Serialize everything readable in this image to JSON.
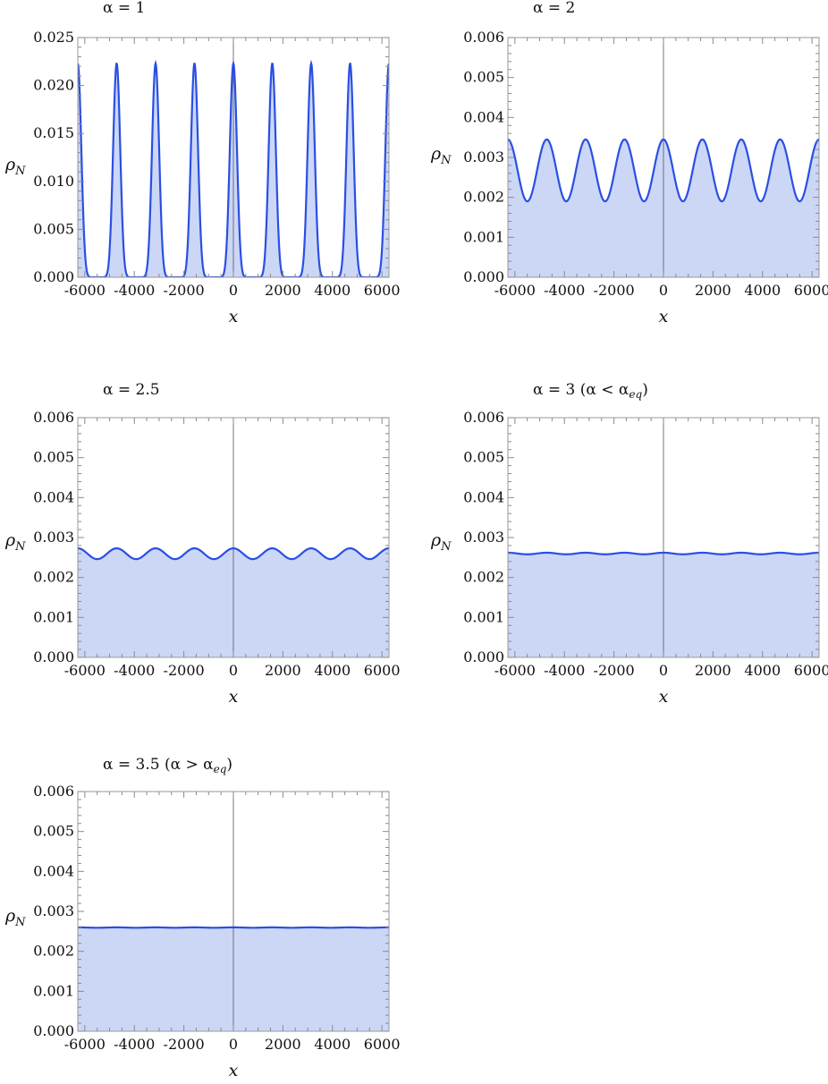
{
  "chart_data": [
    {
      "type": "area",
      "title": {
        "prefix": "α = 1",
        "suffix": ""
      },
      "xlabel": "x",
      "ylabel": {
        "main": "ρ",
        "sub": "N"
      },
      "xlim": [
        -6283,
        6283
      ],
      "ylim": [
        0,
        0.025
      ],
      "xticks": [
        -6000,
        -4000,
        -2000,
        0,
        2000,
        4000,
        6000
      ],
      "xtick_labels": [
        "-6000",
        "-4000",
        "-2000",
        "0",
        "2000",
        "4000",
        "6000"
      ],
      "yticks": [
        0,
        0.005,
        0.01,
        0.015,
        0.02,
        0.025
      ],
      "ytick_labels": [
        "0.000",
        "0.005",
        "0.010",
        "0.015",
        "0.020",
        "0.025"
      ],
      "series": [
        {
          "period": 1571,
          "peak": 0.0223,
          "trough": 0.0,
          "shape": "sharp"
        }
      ]
    },
    {
      "type": "area",
      "title": {
        "prefix": "α = 2",
        "suffix": ""
      },
      "xlabel": "x",
      "ylabel": {
        "main": "ρ",
        "sub": "N"
      },
      "xlim": [
        -6283,
        6283
      ],
      "ylim": [
        0,
        0.006
      ],
      "xticks": [
        -6000,
        -4000,
        -2000,
        0,
        2000,
        4000,
        6000
      ],
      "xtick_labels": [
        "-6000",
        "-4000",
        "-2000",
        "0",
        "2000",
        "4000",
        "6000"
      ],
      "yticks": [
        0,
        0.001,
        0.002,
        0.003,
        0.004,
        0.005,
        0.006
      ],
      "ytick_labels": [
        "0.000",
        "0.001",
        "0.002",
        "0.003",
        "0.004",
        "0.005",
        "0.006"
      ],
      "series": [
        {
          "period": 1571,
          "peak": 0.00345,
          "trough": 0.0019,
          "shape": "smooth"
        }
      ]
    },
    {
      "type": "area",
      "title": {
        "prefix": "α = 2.5",
        "suffix": ""
      },
      "xlabel": "x",
      "ylabel": {
        "main": "ρ",
        "sub": "N"
      },
      "xlim": [
        -6283,
        6283
      ],
      "ylim": [
        0,
        0.006
      ],
      "xticks": [
        -6000,
        -4000,
        -2000,
        0,
        2000,
        4000,
        6000
      ],
      "xtick_labels": [
        "-6000",
        "-4000",
        "-2000",
        "0",
        "2000",
        "4000",
        "6000"
      ],
      "yticks": [
        0,
        0.001,
        0.002,
        0.003,
        0.004,
        0.005,
        0.006
      ],
      "ytick_labels": [
        "0.000",
        "0.001",
        "0.002",
        "0.003",
        "0.004",
        "0.005",
        "0.006"
      ],
      "series": [
        {
          "period": 1571,
          "peak": 0.00273,
          "trough": 0.00246,
          "shape": "smooth"
        }
      ]
    },
    {
      "type": "area",
      "title": {
        "prefix": "α = 3 (α < α",
        "sub": "eq",
        "suffix": ")"
      },
      "xlabel": "x",
      "ylabel": {
        "main": "ρ",
        "sub": "N"
      },
      "xlim": [
        -6283,
        6283
      ],
      "ylim": [
        0,
        0.006
      ],
      "xticks": [
        -6000,
        -4000,
        -2000,
        0,
        2000,
        4000,
        6000
      ],
      "xtick_labels": [
        "-6000",
        "-4000",
        "-2000",
        "0",
        "2000",
        "4000",
        "6000"
      ],
      "yticks": [
        0,
        0.001,
        0.002,
        0.003,
        0.004,
        0.005,
        0.006
      ],
      "ytick_labels": [
        "0.000",
        "0.001",
        "0.002",
        "0.003",
        "0.004",
        "0.005",
        "0.006"
      ],
      "series": [
        {
          "period": 1571,
          "peak": 0.00262,
          "trough": 0.00258,
          "shape": "smooth"
        }
      ]
    },
    {
      "type": "area",
      "title": {
        "prefix": "α = 3.5 (α > α",
        "sub": "eq",
        "suffix": ")"
      },
      "xlabel": "x",
      "ylabel": {
        "main": "ρ",
        "sub": "N"
      },
      "xlim": [
        -6283,
        6283
      ],
      "ylim": [
        0,
        0.006
      ],
      "xticks": [
        -6000,
        -4000,
        -2000,
        0,
        2000,
        4000,
        6000
      ],
      "xtick_labels": [
        "-6000",
        "-4000",
        "-2000",
        "0",
        "2000",
        "4000",
        "6000"
      ],
      "yticks": [
        0,
        0.001,
        0.002,
        0.003,
        0.004,
        0.005,
        0.006
      ],
      "ytick_labels": [
        "0.000",
        "0.001",
        "0.002",
        "0.003",
        "0.004",
        "0.005",
        "0.006"
      ],
      "series": [
        {
          "period": 1571,
          "peak": 0.0026,
          "trough": 0.00259,
          "shape": "smooth"
        }
      ]
    }
  ],
  "colors": {
    "curve": "#2a4fe3",
    "fill": "#ccd7f6",
    "frame": "#9a9a9a"
  }
}
